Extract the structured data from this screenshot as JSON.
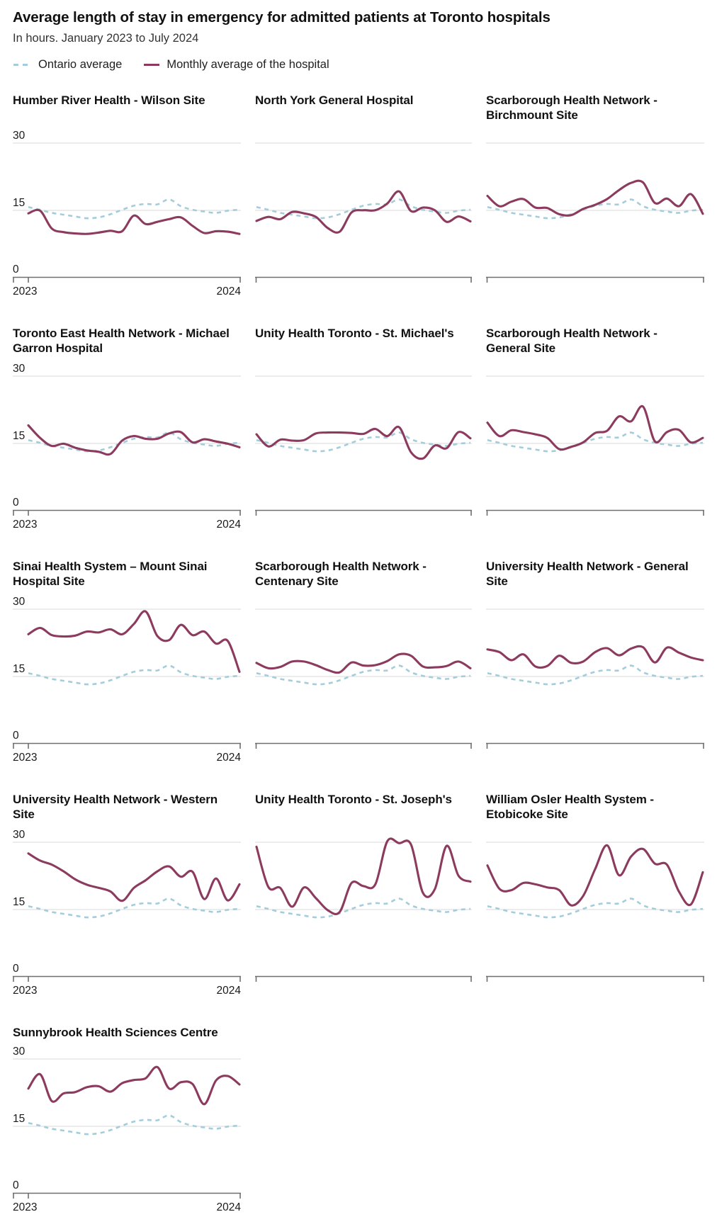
{
  "header": {
    "title": "Average length of stay in emergency for admitted patients at Toronto  hospitals",
    "subtitle": "In hours. January 2023 to July 2024",
    "legend": [
      {
        "label": "Ontario average",
        "series": "ontario_average",
        "style": "dashed"
      },
      {
        "label": "Monthly average of the hospital",
        "series": "hospital_monthly_average",
        "style": "solid"
      }
    ]
  },
  "colors": {
    "ontario_line": "#a4cddb",
    "hospital_line": "#8c3b5e",
    "gridline": "#d9d9d9",
    "axis": "#6f6f6f",
    "tick_text": "#1a1a1a"
  },
  "axis": {
    "y_tick_labels": [
      "30",
      "15",
      "0"
    ],
    "x_tick_labels": [
      "2023",
      "2024"
    ]
  },
  "chart_data": {
    "type": "line",
    "unit": "hours",
    "ylim": [
      0,
      30
    ],
    "y_gridlines": [
      30,
      15
    ],
    "legend_position": "top",
    "x": [
      "Jan 2023",
      "Feb 2023",
      "Mar 2023",
      "Apr 2023",
      "May 2023",
      "Jun 2023",
      "Jul 2023",
      "Aug 2023",
      "Sep 2023",
      "Oct 2023",
      "Nov 2023",
      "Dec 2023",
      "Jan 2024",
      "Feb 2024",
      "Mar 2024",
      "Apr 2024",
      "May 2024",
      "Jun 2024",
      "Jul 2024"
    ],
    "ontario_average": [
      15.7,
      15.1,
      14.4,
      14.0,
      13.6,
      13.2,
      13.4,
      14.1,
      15.1,
      16.0,
      16.4,
      16.3,
      17.4,
      15.9,
      15.1,
      14.7,
      14.4,
      14.9,
      15.1
    ],
    "panels": [
      {
        "title": "Humber River Health - Wilson Site",
        "values": [
          14.3,
          14.9,
          10.9,
          10.1,
          9.8,
          9.7,
          10.0,
          10.4,
          10.3,
          13.8,
          11.9,
          12.4,
          13.0,
          13.4,
          11.5,
          9.9,
          10.3,
          10.2,
          9.7
        ]
      },
      {
        "title": "North York General Hospital",
        "values": [
          12.6,
          13.5,
          13.0,
          14.6,
          14.3,
          13.5,
          11.0,
          10.2,
          14.5,
          15.0,
          15.0,
          16.5,
          19.2,
          14.8,
          15.6,
          15.0,
          12.4,
          13.6,
          12.5
        ]
      },
      {
        "title": "Scarborough Health Network - Birchmount Site",
        "values": [
          18.2,
          15.9,
          16.9,
          17.5,
          15.6,
          15.5,
          14.1,
          13.9,
          15.3,
          16.2,
          17.5,
          19.5,
          21.1,
          21.2,
          16.6,
          17.6,
          15.9,
          18.6,
          14.2
        ]
      },
      {
        "title": "Toronto East Health Network - Michael Garron Hospital",
        "values": [
          19.0,
          16.2,
          14.4,
          14.9,
          14.0,
          13.4,
          13.1,
          12.6,
          15.6,
          16.6,
          16.0,
          16.0,
          17.2,
          17.5,
          15.2,
          15.9,
          15.4,
          14.9,
          14.1
        ]
      },
      {
        "title": "Unity Health Toronto - St. Michael's",
        "values": [
          17.0,
          14.3,
          15.8,
          15.6,
          15.7,
          17.2,
          17.4,
          17.4,
          17.3,
          17.1,
          18.2,
          16.6,
          18.6,
          13.0,
          11.6,
          14.5,
          13.9,
          17.5,
          16.1
        ]
      },
      {
        "title": "Scarborough Health Network - General Site",
        "values": [
          19.6,
          16.6,
          17.9,
          17.5,
          17.0,
          16.2,
          13.7,
          14.2,
          15.2,
          17.3,
          17.8,
          21.0,
          19.9,
          23.2,
          15.4,
          17.5,
          18.0,
          15.2,
          16.2
        ]
      },
      {
        "title": "Sinai Health System – Mount Sinai Hospital Site",
        "values": [
          24.4,
          25.8,
          24.2,
          23.9,
          24.1,
          25.0,
          24.8,
          25.5,
          24.4,
          26.7,
          29.5,
          24.0,
          23.1,
          26.5,
          24.2,
          25.0,
          22.3,
          22.9,
          16.0
        ]
      },
      {
        "title": "Scarborough Health Network - Centenary Site",
        "values": [
          18.0,
          16.8,
          17.1,
          18.3,
          18.3,
          17.5,
          16.4,
          15.9,
          18.1,
          17.4,
          17.5,
          18.4,
          19.9,
          19.6,
          17.2,
          17.0,
          17.3,
          18.3,
          16.8
        ]
      },
      {
        "title": "University Health Network - General Site",
        "values": [
          21.0,
          20.4,
          18.6,
          19.9,
          17.2,
          17.3,
          19.6,
          18.0,
          18.3,
          20.4,
          21.3,
          19.7,
          21.2,
          21.5,
          18.1,
          21.4,
          20.3,
          19.2,
          18.6
        ]
      },
      {
        "title": "University Health Network - Western Site",
        "values": [
          27.5,
          25.9,
          25.0,
          23.5,
          21.7,
          20.5,
          19.8,
          19.0,
          16.9,
          19.8,
          21.5,
          23.5,
          24.6,
          22.3,
          23.4,
          17.3,
          21.9,
          17.0,
          20.6
        ]
      },
      {
        "title": "Unity Health Toronto - St. Joseph's",
        "values": [
          29.0,
          20.0,
          19.8,
          15.6,
          19.9,
          17.5,
          14.8,
          14.4,
          20.9,
          20.2,
          20.6,
          30.2,
          29.8,
          29.5,
          18.7,
          19.5,
          29.2,
          22.5,
          21.2
        ]
      },
      {
        "title": "William Osler Health System - Etobicoke Site",
        "values": [
          24.8,
          19.6,
          19.3,
          20.9,
          20.6,
          19.9,
          19.3,
          15.9,
          18.0,
          24.0,
          29.3,
          22.6,
          26.8,
          28.5,
          25.2,
          25.0,
          19.0,
          16.1,
          23.3
        ]
      },
      {
        "title": "Sunnybrook Health Sciences Centre",
        "values": [
          23.4,
          26.6,
          20.6,
          22.3,
          22.6,
          23.7,
          23.9,
          22.7,
          24.6,
          25.3,
          25.7,
          28.2,
          23.4,
          24.8,
          24.4,
          19.9,
          25.2,
          26.2,
          24.3
        ]
      }
    ]
  }
}
